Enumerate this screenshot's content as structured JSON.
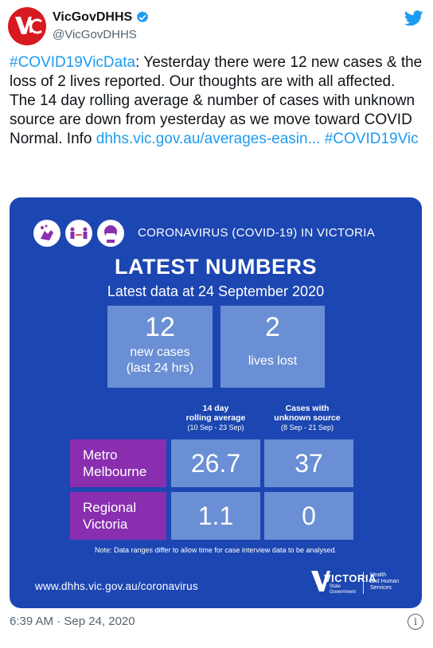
{
  "author": {
    "display_name": "VicGovDHHS",
    "handle": "@VicGovDHHS",
    "avatar_text": "VIC",
    "avatar_color": "#d71920",
    "verified_color": "#1d9bf0"
  },
  "tweet": {
    "hashtag1": "#COVID19VicData",
    "text1": ": Yesterday there were 12 new cases & the loss of 2 lives reported. Our thoughts are with all affected.",
    "text2": "The 14 day rolling average & number of cases with unknown source are down from yesterday as we move toward COVID Normal. Info ",
    "link": "dhhs.vic.gov.au/averages-easin...",
    "hashtag2": "#COVID19Vic",
    "link_color": "#1d9bf0"
  },
  "card": {
    "background": "#1c46b1",
    "heading": "CORONAVIRUS (COVID-19) IN VICTORIA",
    "title": "LATEST NUMBERS",
    "date_line": "Latest data at 24 September 2020",
    "new_cases": {
      "value": "12",
      "label_line1": "new cases",
      "label_line2": "(last 24 hrs)"
    },
    "lives_lost": {
      "value": "2",
      "label": "lives lost"
    },
    "col1": {
      "line1": "14 day",
      "line2": "rolling average",
      "range": "(10 Sep - 23 Sep)"
    },
    "col2": {
      "line1": "Cases with",
      "line2": "unknown source",
      "range": "(8 Sep - 21 Sep)"
    },
    "rows": [
      {
        "line1": "Metro",
        "line2": "Melbourne",
        "avg": "26.7",
        "unknown": "37"
      },
      {
        "line1": "Regional",
        "line2": "Victoria",
        "avg": "1.1",
        "unknown": "0"
      }
    ],
    "note": "Note: Data ranges differ to allow time for case interview data to be analysed.",
    "footer_url": "www.dhhs.vic.gov.au/coronavirus",
    "logo": {
      "word": "VICTORIA",
      "small_line1": "State",
      "small_line2": "Government",
      "dept_line1": "Health",
      "dept_line2": "and Human",
      "dept_line3": "Services"
    },
    "icons": [
      "handwashing-icon",
      "distancing-icon",
      "face-mask-icon"
    ]
  },
  "timestamp": "6:39 AM · Sep 24, 2020"
}
